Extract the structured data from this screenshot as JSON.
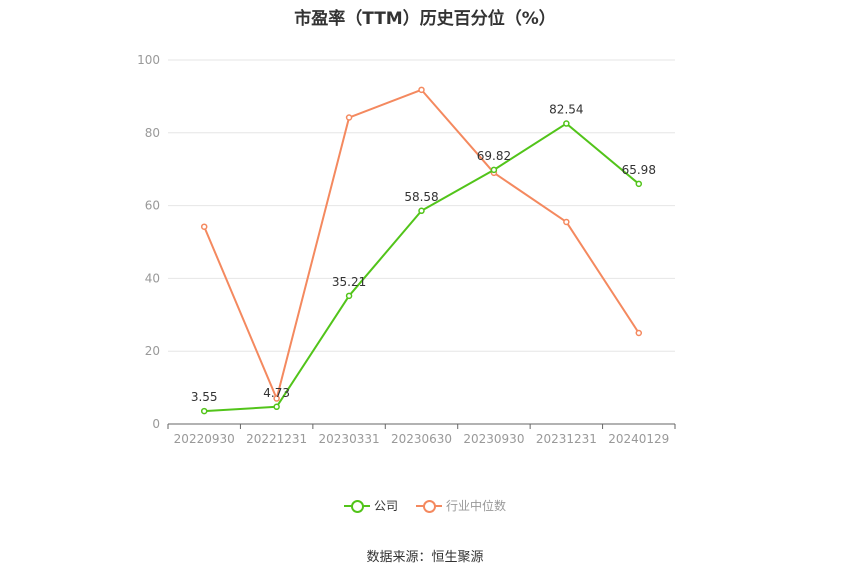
{
  "chart_data": {
    "type": "line",
    "title": "市盈率（TTM）历史百分位（%）",
    "categories": [
      "20220930",
      "20221231",
      "20230331",
      "20230630",
      "20230930",
      "20231231",
      "20240129"
    ],
    "ylim": [
      0,
      100
    ],
    "yticks": [
      0,
      20,
      40,
      60,
      80,
      100
    ],
    "grid": true,
    "legend_position": "bottom",
    "series": [
      {
        "name": "公司",
        "color": "#52c41a",
        "values": [
          3.55,
          4.73,
          35.21,
          58.58,
          69.82,
          82.54,
          65.98
        ],
        "show_labels": true
      },
      {
        "name": "行业中位数",
        "color": "#f4895f",
        "values": [
          54.2,
          7.0,
          84.2,
          91.8,
          69.0,
          55.5,
          25.0
        ],
        "show_labels": false
      }
    ]
  },
  "source_text": "数据来源：恒生聚源"
}
